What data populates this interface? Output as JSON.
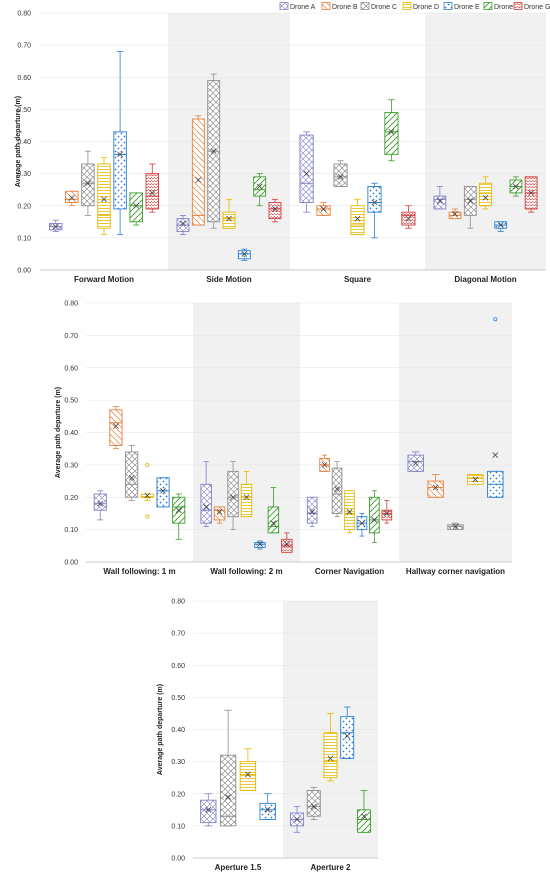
{
  "legend": {
    "items": [
      {
        "name": "Drone A",
        "color": "#8080c8"
      },
      {
        "name": "Drone B",
        "color": "#e67e3a"
      },
      {
        "name": "Drone C",
        "color": "#909090"
      },
      {
        "name": "Drone D",
        "color": "#e6b800"
      },
      {
        "name": "Drone E",
        "color": "#2a7fd4"
      },
      {
        "name": "Drone F",
        "color": "#3c9c2c"
      },
      {
        "name": "Drone G",
        "color": "#d43a3a"
      }
    ]
  },
  "chart_data": [
    {
      "type": "box",
      "ylabel": "Average path departure (m)",
      "ylim": [
        0,
        0.8
      ],
      "yticks": [
        "0.00",
        "0.10",
        "0.20",
        "0.30",
        "0.40",
        "0.50",
        "0.60",
        "0.70",
        "0.80"
      ],
      "grid": true,
      "legend_position": "top-right",
      "groups": [
        {
          "label": "Forward Motion",
          "boxes": [
            {
              "series": "Drone A",
              "min": 0.12,
              "q1": 0.125,
              "median": 0.135,
              "q3": 0.145,
              "max": 0.155,
              "mean": 0.135
            },
            {
              "series": "Drone B",
              "min": 0.2,
              "q1": 0.21,
              "median": 0.22,
              "q3": 0.245,
              "max": 0.245,
              "mean": 0.225
            },
            {
              "series": "Drone C",
              "min": 0.17,
              "q1": 0.2,
              "median": 0.27,
              "q3": 0.33,
              "max": 0.37,
              "mean": 0.27
            },
            {
              "series": "Drone D",
              "min": 0.11,
              "q1": 0.13,
              "median": 0.17,
              "q3": 0.33,
              "max": 0.35,
              "mean": 0.22
            },
            {
              "series": "Drone E",
              "min": 0.11,
              "q1": 0.19,
              "median": 0.36,
              "q3": 0.43,
              "max": 0.68,
              "mean": 0.36
            },
            {
              "series": "Drone F",
              "min": 0.14,
              "q1": 0.15,
              "median": 0.2,
              "q3": 0.24,
              "max": 0.24,
              "mean": 0.2
            },
            {
              "series": "Drone G",
              "min": 0.18,
              "q1": 0.19,
              "median": 0.23,
              "q3": 0.3,
              "max": 0.33,
              "mean": 0.24
            }
          ]
        },
        {
          "label": "Side Motion",
          "boxes": [
            {
              "series": "Drone A",
              "min": 0.11,
              "q1": 0.12,
              "median": 0.14,
              "q3": 0.16,
              "max": 0.17,
              "mean": 0.145
            },
            {
              "series": "Drone B",
              "min": 0.14,
              "q1": 0.14,
              "median": 0.17,
              "q3": 0.47,
              "max": 0.48,
              "mean": 0.28
            },
            {
              "series": "Drone C",
              "min": 0.13,
              "q1": 0.15,
              "median": 0.37,
              "q3": 0.59,
              "max": 0.61,
              "mean": 0.37
            },
            {
              "series": "Drone D",
              "min": 0.13,
              "q1": 0.13,
              "median": 0.16,
              "q3": 0.18,
              "max": 0.22,
              "mean": 0.16
            },
            {
              "series": "Drone E",
              "min": 0.03,
              "q1": 0.035,
              "median": 0.05,
              "q3": 0.06,
              "max": 0.065,
              "mean": 0.05
            },
            {
              "series": "Drone F",
              "min": 0.2,
              "q1": 0.23,
              "median": 0.25,
              "q3": 0.29,
              "max": 0.3,
              "mean": 0.26
            },
            {
              "series": "Drone G",
              "min": 0.15,
              "q1": 0.16,
              "median": 0.19,
              "q3": 0.21,
              "max": 0.22,
              "mean": 0.19
            }
          ]
        },
        {
          "label": "Square",
          "boxes": [
            {
              "series": "Drone A",
              "min": 0.18,
              "q1": 0.21,
              "median": 0.27,
              "q3": 0.42,
              "max": 0.43,
              "mean": 0.3
            },
            {
              "series": "Drone B",
              "min": 0.17,
              "q1": 0.17,
              "median": 0.19,
              "q3": 0.2,
              "max": 0.21,
              "mean": 0.19
            },
            {
              "series": "Drone C",
              "min": 0.26,
              "q1": 0.26,
              "median": 0.29,
              "q3": 0.33,
              "max": 0.34,
              "mean": 0.29
            },
            {
              "series": "Drone D",
              "min": 0.11,
              "q1": 0.11,
              "median": 0.14,
              "q3": 0.2,
              "max": 0.22,
              "mean": 0.16
            },
            {
              "series": "Drone E",
              "min": 0.1,
              "q1": 0.18,
              "median": 0.21,
              "q3": 0.26,
              "max": 0.27,
              "mean": 0.21
            },
            {
              "series": "Drone F",
              "min": 0.34,
              "q1": 0.36,
              "median": 0.43,
              "q3": 0.49,
              "max": 0.53,
              "mean": 0.43
            },
            {
              "series": "Drone G",
              "min": 0.13,
              "q1": 0.14,
              "median": 0.17,
              "q3": 0.18,
              "max": 0.2,
              "mean": 0.16
            }
          ]
        },
        {
          "label": "Diagonal Motion",
          "boxes": [
            {
              "series": "Drone A",
              "min": 0.19,
              "q1": 0.19,
              "median": 0.22,
              "q3": 0.23,
              "max": 0.26,
              "mean": 0.215
            },
            {
              "series": "Drone B",
              "min": 0.16,
              "q1": 0.16,
              "median": 0.17,
              "q3": 0.18,
              "max": 0.19,
              "mean": 0.175
            },
            {
              "series": "Drone C",
              "min": 0.13,
              "q1": 0.17,
              "median": 0.22,
              "q3": 0.26,
              "max": 0.26,
              "mean": 0.215
            },
            {
              "series": "Drone D",
              "min": 0.19,
              "q1": 0.2,
              "median": 0.24,
              "q3": 0.27,
              "max": 0.29,
              "mean": 0.225
            },
            {
              "series": "Drone E",
              "min": 0.12,
              "q1": 0.13,
              "median": 0.14,
              "q3": 0.15,
              "max": 0.15,
              "mean": 0.14
            },
            {
              "series": "Drone F",
              "min": 0.23,
              "q1": 0.24,
              "median": 0.26,
              "q3": 0.28,
              "max": 0.29,
              "mean": 0.26
            },
            {
              "series": "Drone G",
              "min": 0.18,
              "q1": 0.19,
              "median": 0.24,
              "q3": 0.29,
              "max": 0.29,
              "mean": 0.24
            }
          ]
        }
      ]
    },
    {
      "type": "box",
      "ylabel": "Average path departure (m)",
      "ylim": [
        0,
        0.8
      ],
      "yticks": [
        "0.00",
        "0.10",
        "0.20",
        "0.30",
        "0.40",
        "0.50",
        "0.60",
        "0.70",
        "0.80"
      ],
      "grid": true,
      "groups": [
        {
          "label": "Wall following: 1 m",
          "boxes": [
            {
              "series": "Drone A",
              "min": 0.13,
              "q1": 0.16,
              "median": 0.18,
              "q3": 0.21,
              "max": 0.22,
              "mean": 0.18
            },
            {
              "series": "Drone B",
              "min": 0.35,
              "q1": 0.36,
              "median": 0.43,
              "q3": 0.47,
              "max": 0.48,
              "mean": 0.42
            },
            {
              "series": "Drone C",
              "min": 0.19,
              "q1": 0.2,
              "median": 0.24,
              "q3": 0.34,
              "max": 0.36,
              "mean": 0.26
            },
            {
              "series": "Drone D",
              "min": 0.19,
              "q1": 0.2,
              "median": 0.2,
              "q3": 0.21,
              "max": 0.21,
              "mean": 0.205,
              "outliers": [
                0.14,
                0.3
              ]
            },
            {
              "series": "Drone E",
              "min": 0.17,
              "q1": 0.17,
              "median": 0.22,
              "q3": 0.26,
              "max": 0.26,
              "mean": 0.22
            },
            {
              "series": "Drone F",
              "min": 0.07,
              "q1": 0.12,
              "median": 0.17,
              "q3": 0.2,
              "max": 0.21,
              "mean": 0.16
            }
          ]
        },
        {
          "label": "Wall following: 2 m",
          "boxes": [
            {
              "series": "Drone A",
              "min": 0.11,
              "q1": 0.12,
              "median": 0.16,
              "q3": 0.24,
              "max": 0.31,
              "mean": 0.17
            },
            {
              "series": "Drone B",
              "min": 0.12,
              "q1": 0.13,
              "median": 0.16,
              "q3": 0.17,
              "max": 0.17,
              "mean": 0.155
            },
            {
              "series": "Drone C",
              "min": 0.1,
              "q1": 0.14,
              "median": 0.2,
              "q3": 0.28,
              "max": 0.31,
              "mean": 0.2
            },
            {
              "series": "Drone D",
              "min": 0.14,
              "q1": 0.14,
              "median": 0.2,
              "q3": 0.24,
              "max": 0.28,
              "mean": 0.2
            },
            {
              "series": "Drone E",
              "min": 0.04,
              "q1": 0.045,
              "median": 0.055,
              "q3": 0.06,
              "max": 0.065,
              "mean": 0.055
            },
            {
              "series": "Drone F",
              "min": 0.09,
              "q1": 0.09,
              "median": 0.11,
              "q3": 0.17,
              "max": 0.23,
              "mean": 0.12
            },
            {
              "series": "Drone G",
              "min": 0.03,
              "q1": 0.03,
              "median": 0.05,
              "q3": 0.07,
              "max": 0.09,
              "mean": 0.055
            }
          ]
        },
        {
          "label": "Corner Navigation",
          "boxes": [
            {
              "series": "Drone A",
              "min": 0.11,
              "q1": 0.12,
              "median": 0.15,
              "q3": 0.2,
              "max": 0.2,
              "mean": 0.155
            },
            {
              "series": "Drone B",
              "min": 0.28,
              "q1": 0.28,
              "median": 0.3,
              "q3": 0.32,
              "max": 0.33,
              "mean": 0.3
            },
            {
              "series": "Drone C",
              "min": 0.14,
              "q1": 0.15,
              "median": 0.21,
              "q3": 0.29,
              "max": 0.31,
              "mean": 0.225
            },
            {
              "series": "Drone D",
              "min": 0.09,
              "q1": 0.1,
              "median": 0.15,
              "q3": 0.22,
              "max": 0.22,
              "mean": 0.155
            },
            {
              "series": "Drone E",
              "min": 0.08,
              "q1": 0.1,
              "median": 0.12,
              "q3": 0.14,
              "max": 0.15,
              "mean": 0.12
            },
            {
              "series": "Drone F",
              "min": 0.06,
              "q1": 0.09,
              "median": 0.13,
              "q3": 0.2,
              "max": 0.22,
              "mean": 0.13
            },
            {
              "series": "Drone G",
              "min": 0.12,
              "q1": 0.13,
              "median": 0.15,
              "q3": 0.16,
              "max": 0.19,
              "mean": 0.15
            }
          ]
        },
        {
          "label": "Hallway corner navigation",
          "boxes": [
            {
              "series": "Drone A",
              "min": 0.28,
              "q1": 0.28,
              "median": 0.31,
              "q3": 0.33,
              "max": 0.34,
              "mean": 0.305
            },
            {
              "series": "Drone B",
              "min": 0.2,
              "q1": 0.2,
              "median": 0.23,
              "q3": 0.25,
              "max": 0.27,
              "mean": 0.23
            },
            {
              "series": "Drone C",
              "min": 0.1,
              "q1": 0.1,
              "median": 0.11,
              "q3": 0.115,
              "max": 0.12,
              "mean": 0.11
            },
            {
              "series": "Drone D",
              "min": 0.24,
              "q1": 0.24,
              "median": 0.26,
              "q3": 0.27,
              "max": 0.27,
              "mean": 0.255
            },
            {
              "series": "Drone E",
              "min": 0.2,
              "q1": 0.2,
              "median": 0.24,
              "q3": 0.28,
              "max": 0.28,
              "mean": 0.33,
              "outliers": [
                0.75
              ]
            }
          ]
        }
      ]
    },
    {
      "type": "box",
      "ylabel": "Average path departure (m)",
      "ylim": [
        0,
        0.8
      ],
      "yticks": [
        "0.00",
        "0.10",
        "0.20",
        "0.30",
        "0.40",
        "0.50",
        "0.60",
        "0.70",
        "0.80"
      ],
      "grid": true,
      "groups": [
        {
          "label": "Aperture 1.5",
          "boxes": [
            {
              "series": "Drone A",
              "min": 0.1,
              "q1": 0.11,
              "median": 0.15,
              "q3": 0.18,
              "max": 0.2,
              "mean": 0.15
            },
            {
              "series": "Drone C",
              "min": 0.1,
              "q1": 0.1,
              "median": 0.13,
              "q3": 0.32,
              "max": 0.46,
              "mean": 0.19
            },
            {
              "series": "Drone D",
              "min": 0.21,
              "q1": 0.21,
              "median": 0.26,
              "q3": 0.3,
              "max": 0.34,
              "mean": 0.26
            },
            {
              "series": "Drone E",
              "min": 0.12,
              "q1": 0.12,
              "median": 0.15,
              "q3": 0.17,
              "max": 0.2,
              "mean": 0.15
            }
          ]
        },
        {
          "label": "Aperture 2",
          "boxes": [
            {
              "series": "Drone A",
              "min": 0.08,
              "q1": 0.1,
              "median": 0.12,
              "q3": 0.14,
              "max": 0.16,
              "mean": 0.12
            },
            {
              "series": "Drone C",
              "min": 0.12,
              "q1": 0.13,
              "median": 0.16,
              "q3": 0.21,
              "max": 0.22,
              "mean": 0.16
            },
            {
              "series": "Drone D",
              "min": 0.24,
              "q1": 0.25,
              "median": 0.3,
              "q3": 0.39,
              "max": 0.45,
              "mean": 0.31
            },
            {
              "series": "Drone E",
              "min": 0.31,
              "q1": 0.31,
              "median": 0.39,
              "q3": 0.44,
              "max": 0.47,
              "mean": 0.38
            },
            {
              "series": "Drone F",
              "min": 0.08,
              "q1": 0.08,
              "median": 0.12,
              "q3": 0.15,
              "max": 0.21,
              "mean": 0.13
            }
          ]
        }
      ]
    }
  ]
}
